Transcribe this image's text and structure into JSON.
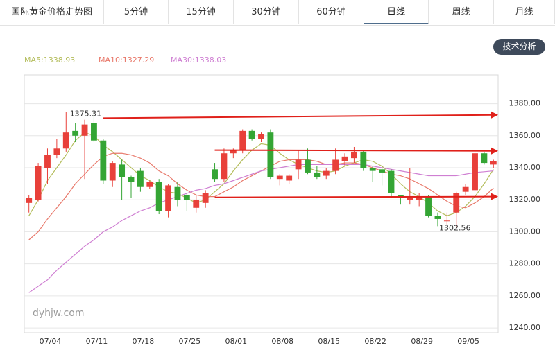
{
  "tabs": [
    "国际黄金价格走势图",
    "5分钟",
    "15分钟",
    "30分钟",
    "60分钟",
    "日线",
    "周线",
    "月线"
  ],
  "active_tab": 5,
  "button": "技术分析",
  "chart_data": {
    "type": "candlestick",
    "watermark": "dyhjw.com",
    "up_color": "#e8403a",
    "down_color": "#34a534",
    "categories": [
      null,
      null,
      "07/04",
      null,
      null,
      null,
      null,
      "07/11",
      null,
      null,
      null,
      null,
      "07/18",
      null,
      null,
      null,
      null,
      "07/25",
      null,
      null,
      null,
      null,
      "08/01",
      null,
      null,
      null,
      null,
      "08/08",
      null,
      null,
      null,
      null,
      "08/15",
      null,
      null,
      null,
      null,
      "08/22",
      null,
      null,
      null,
      null,
      "08/29",
      null,
      null,
      null,
      null,
      "09/05",
      null,
      null,
      null
    ],
    "open": [
      1318,
      1320,
      1340,
      1348,
      1352,
      1363,
      1360,
      1368,
      1357,
      1332,
      1342,
      1334,
      1338,
      1328,
      1331,
      1313,
      1328,
      1323,
      1315,
      1318,
      1339,
      1333,
      1349,
      1351,
      1363,
      1358,
      1362,
      1333,
      1332,
      1339,
      1345,
      1337,
      1335,
      1338,
      1344,
      1346,
      1350,
      1340,
      1339,
      1338,
      1323,
      1320,
      1320,
      1322,
      1310,
      1307,
      1312,
      1325,
      1326,
      1349,
      1342
    ],
    "high": [
      1323,
      1343,
      1352,
      1358,
      1375,
      1368,
      1370,
      1375.31,
      1358,
      1344,
      1345,
      1335,
      1340,
      1332,
      1333,
      1330,
      1331,
      1324,
      1323,
      1326,
      1343,
      1352,
      1352,
      1364,
      1364,
      1362,
      1364,
      1336,
      1336,
      1351,
      1352,
      1341,
      1340,
      1352,
      1349,
      1353,
      1351,
      1341,
      1341,
      1339,
      1323,
      1340,
      1324,
      1323,
      1312,
      1312,
      1325,
      1330,
      1351,
      1350,
      1345
    ],
    "low": [
      1312,
      1319,
      1330,
      1346,
      1350,
      1356,
      1333,
      1356,
      1330,
      1328,
      1320,
      1321,
      1325,
      1327,
      1311,
      1309,
      1316,
      1313,
      1312,
      1315,
      1331,
      1331,
      1346,
      1349,
      1357,
      1356,
      1333,
      1329,
      1330,
      1333,
      1336,
      1333,
      1333,
      1336,
      1341,
      1343,
      1338,
      1331,
      1329,
      1322,
      1317,
      1317,
      1316,
      1309,
      1303.5,
      1304,
      1302.56,
      1323,
      1325,
      1342,
      1340
    ],
    "close": [
      1321,
      1341,
      1348,
      1352,
      1362,
      1360,
      1367,
      1357,
      1332,
      1343,
      1334,
      1331,
      1328,
      1331,
      1313,
      1329,
      1320,
      1320,
      1320,
      1324,
      1333,
      1349,
      1351,
      1363,
      1358,
      1361,
      1334,
      1335,
      1335,
      1345,
      1337,
      1334,
      1338,
      1345,
      1347,
      1350,
      1340,
      1338,
      1337,
      1324,
      1321,
      1321,
      1322,
      1310,
      1308,
      1307,
      1324,
      1328,
      1349,
      1343,
      1344
    ],
    "high_mark": 7,
    "low_mark": 46,
    "series": [
      {
        "name": "MA5:1338.93",
        "color": "#b4bd5c",
        "values": [
          1310,
          1320,
          1332,
          1340,
          1348,
          1357,
          1362,
          1360,
          1354,
          1350,
          1345,
          1340,
          1335,
          1332,
          1328,
          1325,
          1324,
          1321,
          1318,
          1320,
          1325,
          1330,
          1338,
          1345,
          1351,
          1355,
          1354,
          1349,
          1345,
          1342,
          1340,
          1338,
          1337,
          1338,
          1341,
          1343,
          1345,
          1344,
          1341,
          1336,
          1330,
          1325,
          1322,
          1318,
          1313,
          1310,
          1312,
          1316,
          1322,
          1330,
          1338.93
        ]
      },
      {
        "name": "MA10:1327.29",
        "color": "#e8786a",
        "values": [
          1295,
          1300,
          1308,
          1315,
          1322,
          1330,
          1336,
          1342,
          1347,
          1349,
          1349,
          1348,
          1346,
          1343,
          1338,
          1335,
          1330,
          1326,
          1323,
          1322,
          1322,
          1325,
          1328,
          1332,
          1335,
          1338,
          1341,
          1344,
          1345,
          1345,
          1345,
          1344,
          1342,
          1342,
          1343,
          1343,
          1342,
          1340,
          1338,
          1336,
          1335,
          1333,
          1330,
          1327,
          1323,
          1319,
          1316,
          1315,
          1318,
          1322,
          1327.29
        ]
      },
      {
        "name": "MA30:1338.03",
        "color": "#cf7fd2",
        "values": [
          1262,
          1266,
          1270,
          1276,
          1281,
          1286,
          1291,
          1295,
          1300,
          1303,
          1307,
          1310,
          1313,
          1315,
          1318,
          1320,
          1322,
          1324,
          1326,
          1327,
          1329,
          1330,
          1332,
          1334,
          1336,
          1338,
          1339,
          1340,
          1341,
          1342,
          1342,
          1342,
          1342,
          1342,
          1342,
          1342,
          1342,
          1341,
          1340,
          1339,
          1338,
          1337,
          1336,
          1335,
          1335,
          1335,
          1335,
          1336,
          1337,
          1337.5,
          1338.03
        ]
      }
    ],
    "arrows": {
      "color": "#e0201a",
      "items": [
        {
          "start": 8,
          "values": [
            1371,
            1373
          ]
        },
        {
          "start": 20,
          "values": [
            1351,
            1350.5
          ]
        },
        {
          "start": 20,
          "values": [
            1321.5,
            1322
          ]
        }
      ]
    },
    "ylim": [
      1237,
      1398
    ],
    "yticks": [
      {
        "value": 1240,
        "label": "1240.00"
      },
      {
        "value": 1260,
        "label": "1260.00"
      },
      {
        "value": 1280,
        "label": "1280.00"
      },
      {
        "value": 1300,
        "label": "1300.00"
      },
      {
        "value": 1320,
        "label": "1320.00"
      },
      {
        "value": 1340,
        "label": "1340.00"
      },
      {
        "value": 1360,
        "label": "1360.00"
      },
      {
        "value": 1380,
        "label": "1380.00"
      }
    ],
    "grid": true
  }
}
